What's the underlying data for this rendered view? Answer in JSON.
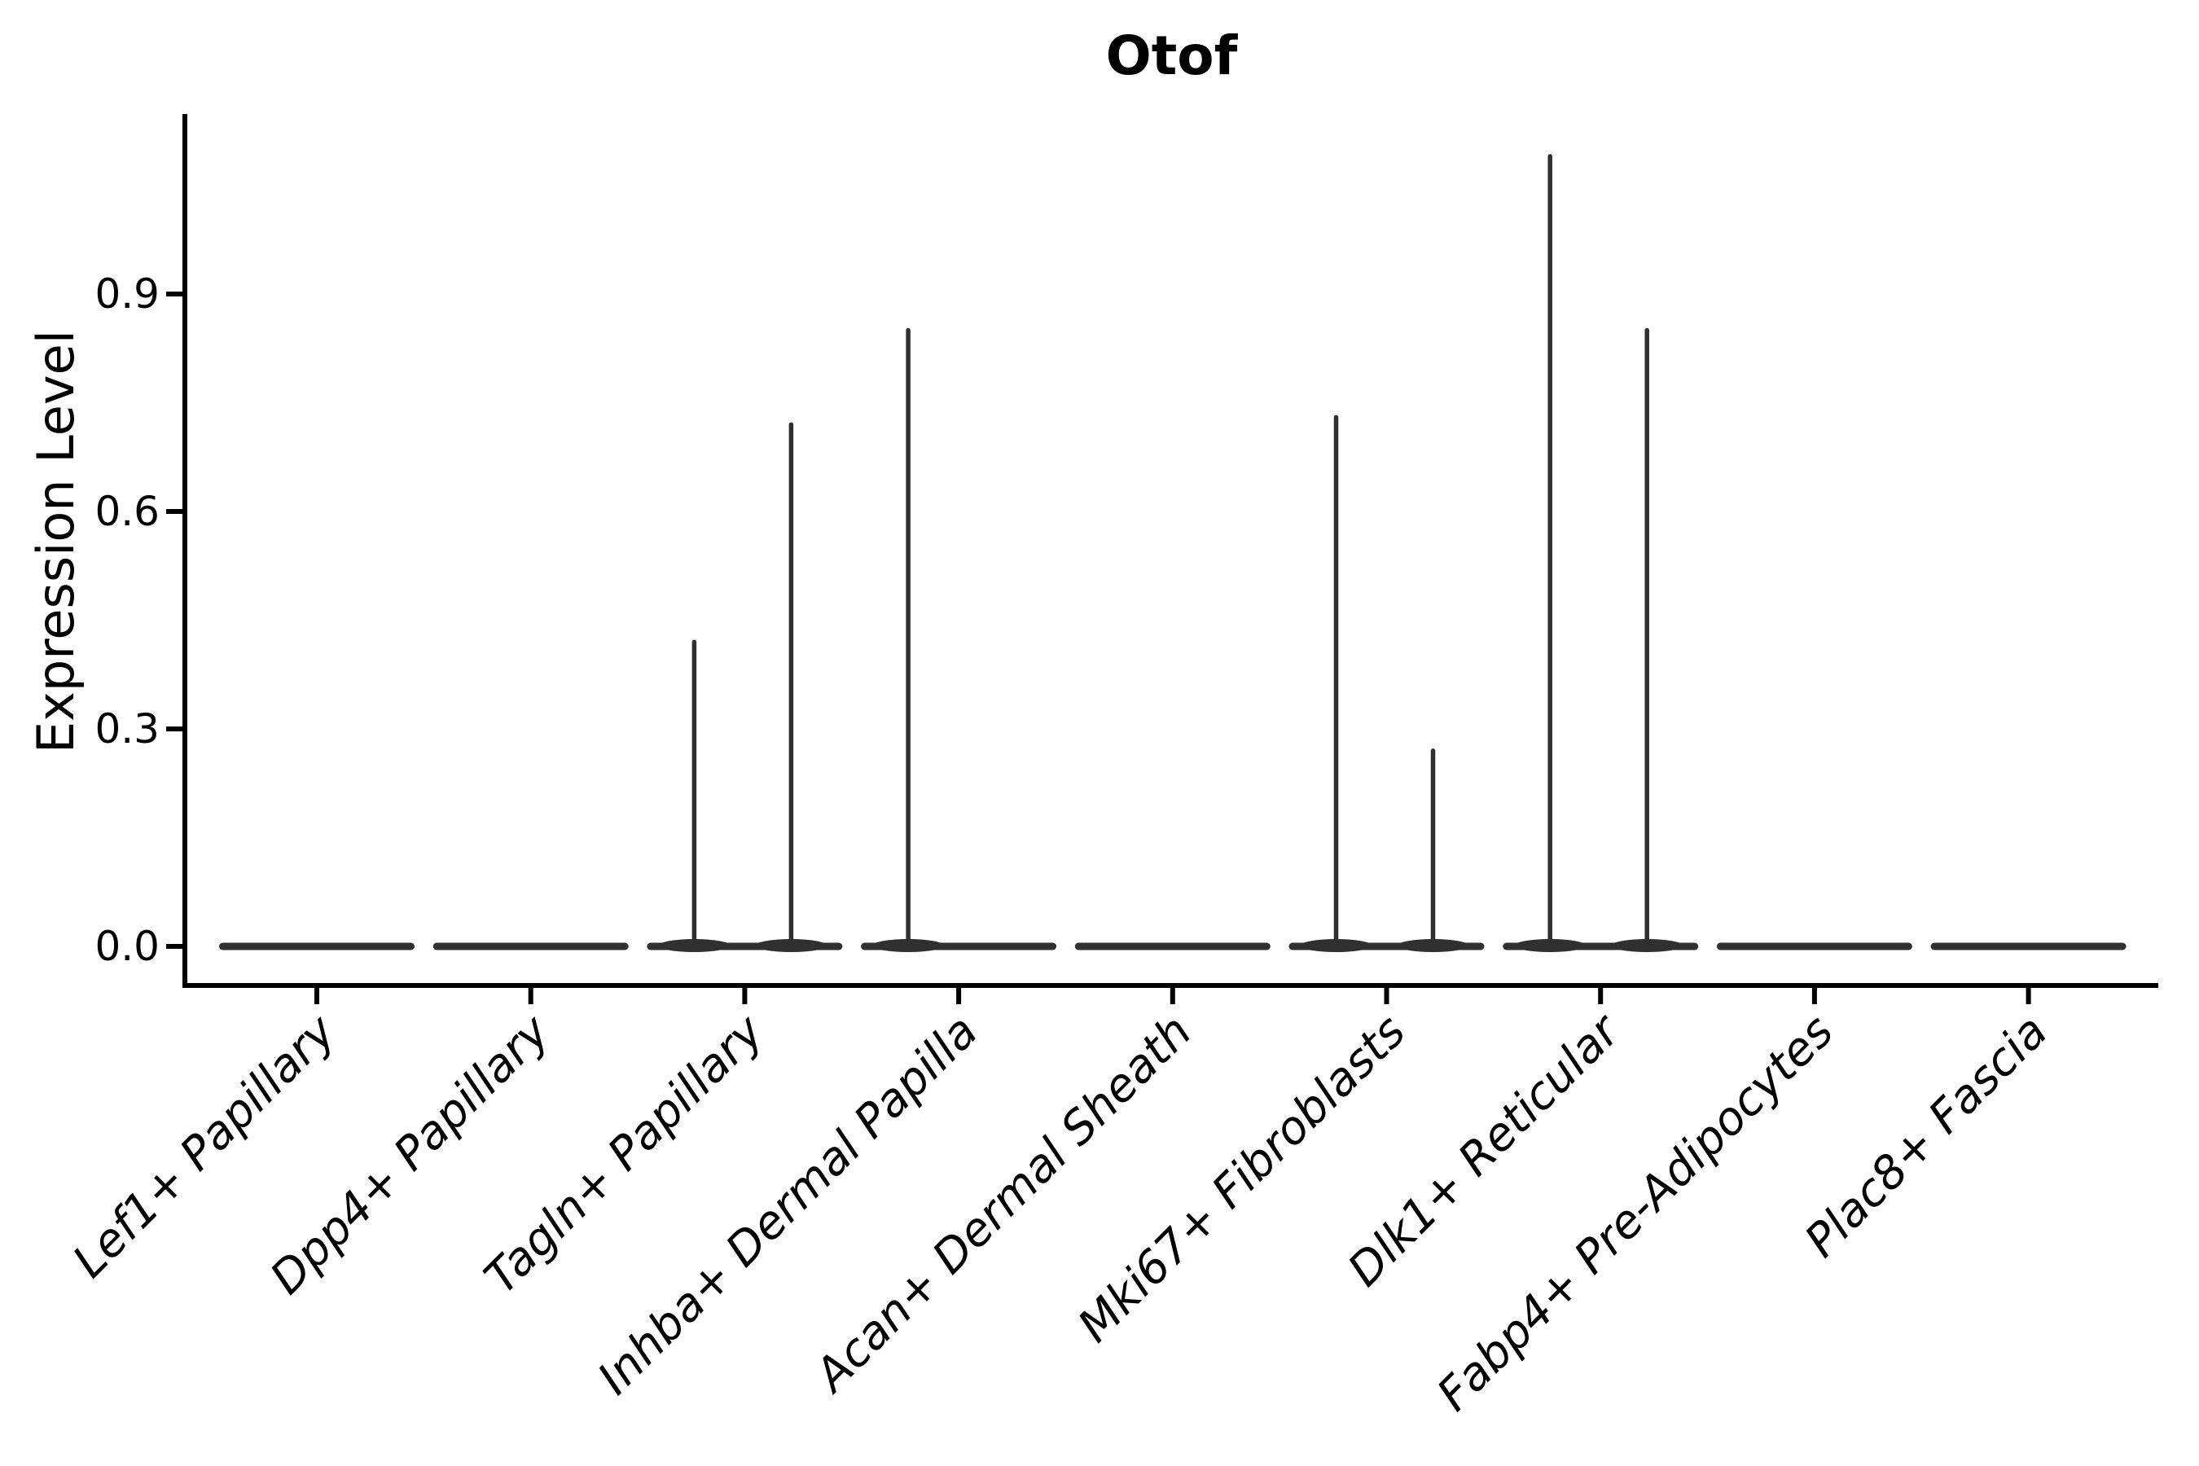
{
  "figure": {
    "background": "#ffffff"
  },
  "chart_data": {
    "type": "violin",
    "title": "Otof",
    "ylabel": "Expression Level",
    "xlabel": "",
    "grid": false,
    "legend": null,
    "yticks": [
      {
        "label": "0.0",
        "value": 0.0
      },
      {
        "label": "0.3",
        "value": 0.3
      },
      {
        "label": "0.6",
        "value": 0.6
      },
      {
        "label": "0.9",
        "value": 0.9
      }
    ],
    "ylim_approx": [
      -0.05,
      1.15
    ],
    "categories": [
      "Lef1+ Papillary",
      "Dpp4+ Papillary",
      "Tagln+ Papillary",
      "Inhba+ Dermal Papilla",
      "Acan+ Dermal Sheath",
      "Mki67+ Fibroblasts",
      "Dlk1+ Reticular",
      "Fabp4+ Pre-Adipocytes",
      "Plac8+ Fascia"
    ],
    "violins": [
      {
        "category": "Lef1+ Papillary",
        "body_value": 0,
        "spikes": []
      },
      {
        "category": "Dpp4+ Papillary",
        "body_value": 0,
        "spikes": []
      },
      {
        "category": "Tagln+ Papillary",
        "body_value": 0,
        "spikes": [
          {
            "side": "left",
            "max": 0.42
          },
          {
            "side": "right",
            "max": 0.72
          }
        ]
      },
      {
        "category": "Inhba+ Dermal Papilla",
        "body_value": 0,
        "spikes": [
          {
            "side": "left",
            "max": 0.85
          }
        ]
      },
      {
        "category": "Acan+ Dermal Sheath",
        "body_value": 0,
        "spikes": []
      },
      {
        "category": "Mki67+ Fibroblasts",
        "body_value": 0,
        "spikes": [
          {
            "side": "left",
            "max": 0.73
          },
          {
            "side": "right",
            "max": 0.27
          }
        ]
      },
      {
        "category": "Dlk1+ Reticular",
        "body_value": 0,
        "spikes": [
          {
            "side": "left",
            "max": 1.09
          },
          {
            "side": "right",
            "max": 0.85
          }
        ]
      },
      {
        "category": "Fabp4+ Pre-Adipocytes",
        "body_value": 0,
        "spikes": []
      },
      {
        "category": "Plac8+ Fascia",
        "body_value": 0,
        "spikes": []
      }
    ],
    "colors": {
      "violin": "#303030",
      "axis": "#000000",
      "text": "#000000",
      "background": "#ffffff"
    }
  }
}
